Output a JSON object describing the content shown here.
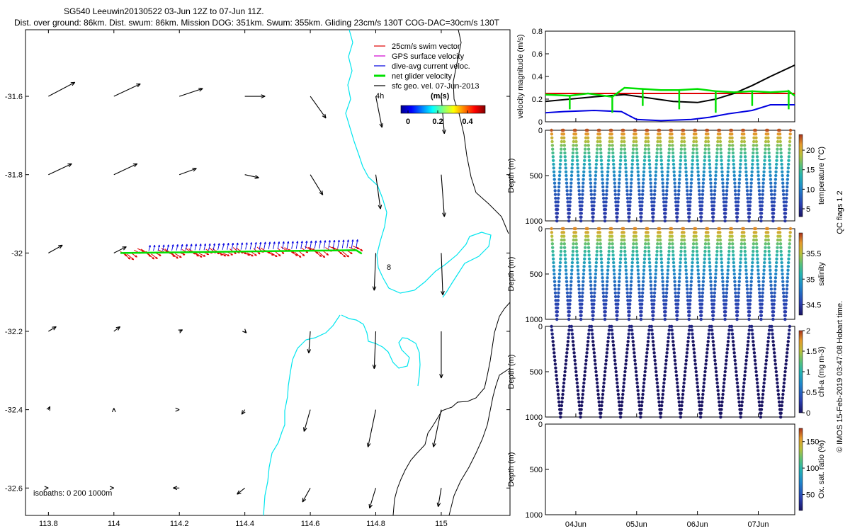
{
  "chart_data": [
    {
      "type": "map",
      "title_line1": "SG540 Leeuwin20130522 03-Jun 12Z to 07-Jun 11Z.",
      "title_line2": "Dist. over ground: 86km. Dist. swum: 86km. Mission DOG: 351km. Swum: 355km. Gliding 23cm/s 130T COG-DAC=30cm/s 130T",
      "x_ticks": [
        "113.8",
        "114",
        "114.2",
        "114.4",
        "114.6",
        "114.8",
        "115"
      ],
      "x_tick_values": [
        113.8,
        114.0,
        114.2,
        114.4,
        114.6,
        114.8,
        115.0
      ],
      "y_ticks": [
        "-31.6",
        "-31.8",
        "-32",
        "-32.2",
        "-32.4",
        "-32.6"
      ],
      "y_tick_values": [
        -31.6,
        -31.8,
        -32.0,
        -32.2,
        -32.4,
        -32.6
      ],
      "xlim": [
        113.73,
        115.21
      ],
      "ylim": [
        -32.67,
        -31.43
      ],
      "legend": [
        {
          "label": "25cm/s swim vector",
          "color": "#e00000"
        },
        {
          "label": "GPS surface velocity",
          "color": "#d000d0"
        },
        {
          "label": "dive-avg current veloc.",
          "color": "#0000e0"
        },
        {
          "label": "net glider velocity",
          "color": "#00e000"
        },
        {
          "label": "sfc geo. vel. 07-Jun-2013",
          "color": "#000000"
        }
      ],
      "time_step_label": "4h",
      "colorbar_title": "(m/s)",
      "colorbar_ticks": [
        "0",
        "0.2",
        "0.4"
      ],
      "isobaths_label": "isobaths: 0   200  1000m",
      "annotation": "8",
      "track": {
        "lon_start": 114.02,
        "lon_end": 114.74,
        "lat": -32.0
      },
      "sfc_vectors": [
        {
          "lon": 113.8,
          "lat": -31.6,
          "u": 0.17,
          "v": 0.09
        },
        {
          "lon": 114.0,
          "lat": -31.6,
          "u": 0.17,
          "v": 0.08
        },
        {
          "lon": 114.2,
          "lat": -31.6,
          "u": 0.15,
          "v": 0.05
        },
        {
          "lon": 114.4,
          "lat": -31.6,
          "u": 0.13,
          "v": 0.0
        },
        {
          "lon": 114.6,
          "lat": -31.6,
          "u": 0.1,
          "v": -0.14
        },
        {
          "lon": 114.8,
          "lat": -31.6,
          "u": 0.04,
          "v": -0.2
        },
        {
          "lon": 115.0,
          "lat": -31.6,
          "u": 0.02,
          "v": -0.24
        },
        {
          "lon": 113.8,
          "lat": -31.8,
          "u": 0.15,
          "v": 0.07
        },
        {
          "lon": 114.0,
          "lat": -31.8,
          "u": 0.15,
          "v": 0.07
        },
        {
          "lon": 114.2,
          "lat": -31.8,
          "u": 0.11,
          "v": 0.04
        },
        {
          "lon": 114.4,
          "lat": -31.8,
          "u": 0.09,
          "v": -0.02
        },
        {
          "lon": 114.6,
          "lat": -31.8,
          "u": 0.08,
          "v": -0.13
        },
        {
          "lon": 114.8,
          "lat": -31.8,
          "u": 0.03,
          "v": -0.22
        },
        {
          "lon": 115.0,
          "lat": -31.8,
          "u": 0.02,
          "v": -0.27
        },
        {
          "lon": 113.8,
          "lat": -32.0,
          "u": 0.09,
          "v": 0.05
        },
        {
          "lon": 114.0,
          "lat": -32.0,
          "u": 0.08,
          "v": 0.04
        },
        {
          "lon": 114.8,
          "lat": -32.0,
          "u": -0.01,
          "v": -0.24
        },
        {
          "lon": 115.0,
          "lat": -32.0,
          "u": 0.01,
          "v": -0.27
        },
        {
          "lon": 113.8,
          "lat": -32.2,
          "u": 0.05,
          "v": 0.03
        },
        {
          "lon": 114.0,
          "lat": -32.2,
          "u": 0.04,
          "v": 0.03
        },
        {
          "lon": 114.2,
          "lat": -32.2,
          "u": 0.02,
          "v": 0.01
        },
        {
          "lon": 114.4,
          "lat": -32.2,
          "u": 0.01,
          "v": -0.01
        },
        {
          "lon": 114.6,
          "lat": -32.2,
          "u": -0.01,
          "v": -0.14
        },
        {
          "lon": 114.8,
          "lat": -32.2,
          "u": -0.01,
          "v": -0.24
        },
        {
          "lon": 115.0,
          "lat": -32.2,
          "u": 0.0,
          "v": -0.3
        },
        {
          "lon": 113.8,
          "lat": -32.4,
          "u": 0.01,
          "v": 0.02
        },
        {
          "lon": 114.0,
          "lat": -32.4,
          "u": 0.0,
          "v": 0.01
        },
        {
          "lon": 114.2,
          "lat": -32.4,
          "u": 0.0,
          "v": 0.0
        },
        {
          "lon": 114.4,
          "lat": -32.4,
          "u": -0.02,
          "v": -0.03
        },
        {
          "lon": 114.6,
          "lat": -32.4,
          "u": -0.04,
          "v": -0.14
        },
        {
          "lon": 114.8,
          "lat": -32.4,
          "u": -0.05,
          "v": -0.24
        },
        {
          "lon": 115.0,
          "lat": -32.4,
          "u": -0.05,
          "v": -0.24
        },
        {
          "lon": 113.8,
          "lat": -32.6,
          "u": 0.0,
          "v": 0.0
        },
        {
          "lon": 114.0,
          "lat": -32.6,
          "u": 0.0,
          "v": 0.0
        },
        {
          "lon": 114.2,
          "lat": -32.6,
          "u": -0.04,
          "v": 0.0
        },
        {
          "lon": 114.4,
          "lat": -32.6,
          "u": -0.05,
          "v": -0.04
        },
        {
          "lon": 114.6,
          "lat": -32.6,
          "u": -0.05,
          "v": -0.09
        },
        {
          "lon": 114.8,
          "lat": -32.6,
          "u": -0.04,
          "v": -0.13
        },
        {
          "lon": 115.0,
          "lat": -32.6,
          "u": -0.02,
          "v": -0.12
        }
      ]
    },
    {
      "type": "line",
      "ylabel": "velocity magnitude (m/s)",
      "ylim": [
        0,
        0.8
      ],
      "y_ticks": [
        "0",
        "0.2",
        "0.4",
        "0.6",
        "0.8"
      ],
      "y_tick_values": [
        0,
        0.2,
        0.4,
        0.6,
        0.8
      ],
      "xlim": [
        3.5,
        7.6
      ],
      "series": [
        {
          "name": "swim",
          "color": "#e00000",
          "x": [
            3.5,
            7.6
          ],
          "values": [
            0.25,
            0.25
          ]
        },
        {
          "name": "current",
          "color": "#0000e0",
          "x": [
            3.5,
            3.8,
            4.3,
            4.75,
            5.0,
            5.4,
            5.9,
            6.2,
            6.5,
            6.9,
            7.2,
            7.6
          ],
          "values": [
            0.08,
            0.09,
            0.1,
            0.09,
            0.02,
            0.01,
            0.02,
            0.04,
            0.07,
            0.1,
            0.15,
            0.15
          ]
        },
        {
          "name": "sfc geo.",
          "color": "#000000",
          "x": [
            3.5,
            3.9,
            4.3,
            4.8,
            5.2,
            5.6,
            6.0,
            6.3,
            6.6,
            6.9,
            7.2,
            7.6
          ],
          "values": [
            0.18,
            0.2,
            0.22,
            0.24,
            0.21,
            0.18,
            0.17,
            0.2,
            0.25,
            0.32,
            0.4,
            0.5
          ]
        },
        {
          "name": "net",
          "color": "#00e000",
          "x": [
            3.5,
            3.9,
            4.2,
            4.6,
            4.8,
            5.1,
            5.4,
            5.7,
            6.0,
            6.3,
            6.6,
            6.9,
            7.2,
            7.5,
            7.6
          ],
          "values": [
            0.24,
            0.23,
            0.25,
            0.22,
            0.3,
            0.29,
            0.28,
            0.28,
            0.29,
            0.27,
            0.26,
            0.27,
            0.26,
            0.27,
            0.23
          ]
        }
      ]
    },
    {
      "type": "scatter",
      "ylabel": "Depth (m)",
      "colorbar_label": "temperature (°C)",
      "ylim": [
        0,
        1000
      ],
      "y_ticks": [
        "0",
        "500",
        "1000"
      ],
      "y_tick_values": [
        0,
        500,
        1000
      ],
      "colorbar_ticks": [
        "5",
        "10",
        "15",
        "20"
      ],
      "colorbar_tick_values": [
        5,
        10,
        15,
        20
      ],
      "colorbar_range": [
        3,
        24
      ],
      "dive_count": 20,
      "surface_value": 23,
      "bottom_value": 4
    },
    {
      "type": "scatter",
      "ylabel": "Depth (m)",
      "colorbar_label": "salinity",
      "ylim": [
        0,
        1000
      ],
      "y_ticks": [
        "0",
        "500",
        "1000"
      ],
      "y_tick_values": [
        0,
        500,
        1000
      ],
      "colorbar_ticks": [
        "34.5",
        "35",
        "35.5"
      ],
      "colorbar_tick_values": [
        34.5,
        35.0,
        35.5
      ],
      "colorbar_range": [
        34.3,
        35.9
      ],
      "dive_count": 20,
      "surface_value": 35.7,
      "bottom_value": 34.4
    },
    {
      "type": "scatter",
      "ylabel": "Depth (m)",
      "colorbar_label": "chl-a (mg m-3)",
      "ylim": [
        0,
        1000
      ],
      "y_ticks": [
        "0",
        "500",
        "1000"
      ],
      "y_tick_values": [
        0,
        500,
        1000
      ],
      "colorbar_ticks": [
        "0",
        "0.5",
        "1",
        "1.5",
        "2"
      ],
      "colorbar_tick_values": [
        0,
        0.5,
        1,
        1.5,
        2
      ],
      "colorbar_range": [
        0,
        2
      ],
      "dive_count": 12,
      "surface_value": 0.05,
      "bottom_value": 0
    },
    {
      "type": "scatter",
      "ylabel": "Depth (m)",
      "colorbar_label": "Ox. sat. ratio (%)",
      "ylim": [
        0,
        1000
      ],
      "y_ticks": [
        "0",
        "500",
        "1000"
      ],
      "y_tick_values": [
        0,
        500,
        1000
      ],
      "colorbar_ticks": [
        "50",
        "100",
        "150"
      ],
      "colorbar_tick_values": [
        50,
        100,
        150
      ],
      "colorbar_range": [
        20,
        175
      ],
      "dive_count": 0,
      "x_ticks": [
        "04Jun",
        "05Jun",
        "06Jun",
        "07Jun"
      ],
      "x_tick_values": [
        4,
        5,
        6,
        7
      ]
    }
  ],
  "qc_flags_label": "QC flags 1 2",
  "footer": "© IMOS 15-Feb-2019 03:47:08 Hobart time."
}
